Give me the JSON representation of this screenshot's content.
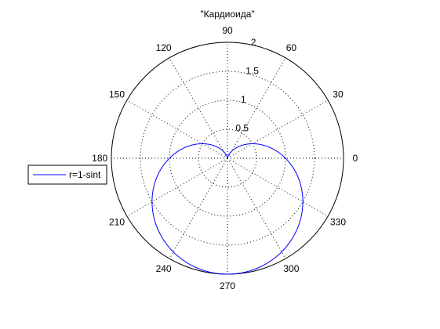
{
  "chart_data": {
    "type": "line",
    "coordinate_system": "polar",
    "title": "\"Кардиоида\"",
    "equation": "r = 1 - sin(t)",
    "angle_unit": "degrees",
    "angle_ticks": [
      0,
      30,
      60,
      90,
      120,
      150,
      180,
      210,
      240,
      270,
      300,
      330
    ],
    "radial_ticks": [
      0.5,
      1,
      1.5,
      2
    ],
    "radial_tick_labels": [
      "0.5",
      "1",
      "1.5",
      "2"
    ],
    "rlim": [
      0,
      2
    ],
    "grid": true,
    "series": [
      {
        "name": "r=1-sint",
        "color": "#0000ff",
        "samples": [
          {
            "theta_deg": 0,
            "r": 1.0
          },
          {
            "theta_deg": 30,
            "r": 0.5
          },
          {
            "theta_deg": 60,
            "r": 0.134
          },
          {
            "theta_deg": 90,
            "r": 0.0
          },
          {
            "theta_deg": 120,
            "r": 0.134
          },
          {
            "theta_deg": 150,
            "r": 0.5
          },
          {
            "theta_deg": 180,
            "r": 1.0
          },
          {
            "theta_deg": 210,
            "r": 1.5
          },
          {
            "theta_deg": 240,
            "r": 1.866
          },
          {
            "theta_deg": 270,
            "r": 2.0
          },
          {
            "theta_deg": 300,
            "r": 1.866
          },
          {
            "theta_deg": 330,
            "r": 1.5
          },
          {
            "theta_deg": 360,
            "r": 1.0
          }
        ]
      }
    ],
    "legend": {
      "placement": "left",
      "entries": [
        "r=1-sint"
      ]
    }
  }
}
